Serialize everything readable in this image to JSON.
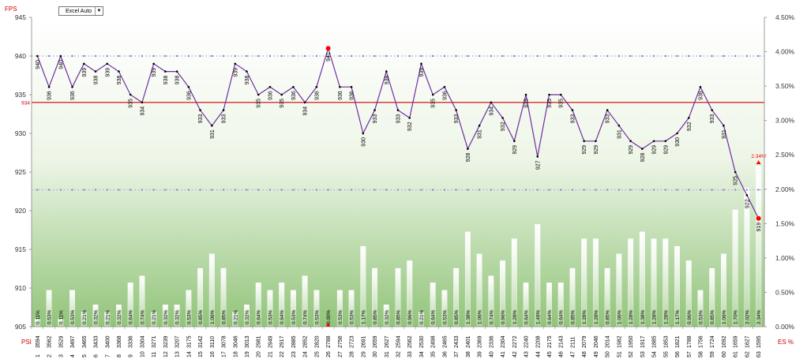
{
  "controls": {
    "dropdown_value": "Excel Auto"
  },
  "chart_data": {
    "type": "combo",
    "left_axis": {
      "title": "FPS",
      "range": [
        905,
        945
      ],
      "ticks": [
        905,
        910,
        915,
        920,
        925,
        930,
        935,
        940,
        945
      ]
    },
    "right_axis": {
      "title": "ES %",
      "range": [
        0,
        4.5
      ],
      "ticks": [
        "0.00%",
        "0.50%",
        "1.00%",
        "1.50%",
        "2.00%",
        "2.50%",
        "3.00%",
        "3.50%",
        "4.00%",
        "4.50%"
      ]
    },
    "x_axis_label": "PSI",
    "categories": [
      "1",
      "2",
      "3",
      "4",
      "5",
      "6",
      "7",
      "8",
      "9",
      "10",
      "11",
      "12",
      "13",
      "14",
      "15",
      "16",
      "17",
      "18",
      "19",
      "20",
      "21",
      "22",
      "23",
      "24",
      "25",
      "26",
      "27",
      "28",
      "29",
      "30",
      "31",
      "32",
      "33",
      "34",
      "35",
      "36",
      "37",
      "38",
      "39",
      "40",
      "41",
      "42",
      "43",
      "44",
      "45",
      "46",
      "47",
      "48",
      "49",
      "50",
      "51",
      "52",
      "53",
      "54",
      "55",
      "56",
      "57",
      "58",
      "59",
      "60",
      "61",
      "62",
      "63"
    ],
    "psi": [
      "3594",
      "3562",
      "3529",
      "3497",
      "3465",
      "3433",
      "3400",
      "3368",
      "3336",
      "3304",
      "3271",
      "3239",
      "3207",
      "3175",
      "3142",
      "3110",
      "3078",
      "3046",
      "3013",
      "2981",
      "2949",
      "2917",
      "2885",
      "2852",
      "2820",
      "2788",
      "2756",
      "2723",
      "2691",
      "2659",
      "2627",
      "2594",
      "2562",
      "2530",
      "2498",
      "2465",
      "2433",
      "2401",
      "2369",
      "2336",
      "2304",
      "2272",
      "2240",
      "2208",
      "2175",
      "2143",
      "2111",
      "2079",
      "2046",
      "2014",
      "1982",
      "1950",
      "1917",
      "1885",
      "1853",
      "1821",
      "1788",
      "1756",
      "1724",
      "1692",
      "1659",
      "1627",
      "1595"
    ],
    "fps": [
      940,
      936,
      940,
      936,
      939,
      938,
      939,
      938,
      935,
      934,
      939,
      938,
      938,
      936,
      933,
      931,
      933,
      939,
      938,
      935,
      936,
      935,
      936,
      934,
      936,
      941,
      936,
      936,
      930,
      933,
      938,
      933,
      932,
      939,
      935,
      936,
      933,
      928,
      931,
      934,
      932,
      929,
      935,
      927,
      935,
      935,
      933,
      929,
      929,
      933,
      931,
      929,
      928,
      929,
      929,
      930,
      932,
      936,
      933,
      931,
      925,
      922,
      919
    ],
    "es_pct_labels": [
      "0.11%",
      "0.53%",
      "0.11%",
      "0.53%",
      "0.21%",
      "0.32%",
      "0.21%",
      "0.32%",
      "0.64%",
      "0.74%",
      "0.21%",
      "0.32%",
      "0.32%",
      "0.53%",
      "0.85%",
      "1.06%",
      "0.85%",
      "0.21%",
      "0.32%",
      "0.64%",
      "0.53%",
      "0.64%",
      "0.53%",
      "0.74%",
      "0.53%",
      "0.00%",
      "0.53%",
      "0.53%",
      "1.17%",
      "0.85%",
      "0.32%",
      "0.85%",
      "0.96%",
      "0.21%",
      "0.64%",
      "0.53%",
      "0.85%",
      "1.38%",
      "1.06%",
      "0.74%",
      "0.96%",
      "1.28%",
      "0.64%",
      "1.49%",
      "0.64%",
      "0.64%",
      "0.85%",
      "1.28%",
      "1.28%",
      "0.85%",
      "1.06%",
      "1.28%",
      "1.38%",
      "1.28%",
      "1.28%",
      "1.17%",
      "0.96%",
      "0.53%",
      "0.85%",
      "1.06%",
      "1.70%",
      "2.02%",
      "2.34%"
    ],
    "es_pct": [
      0.11,
      0.53,
      0.11,
      0.53,
      0.21,
      0.32,
      0.21,
      0.32,
      0.64,
      0.74,
      0.21,
      0.32,
      0.32,
      0.53,
      0.85,
      1.06,
      0.85,
      0.21,
      0.32,
      0.64,
      0.53,
      0.64,
      0.53,
      0.74,
      0.53,
      0.0,
      0.53,
      0.53,
      1.17,
      0.85,
      0.32,
      0.85,
      0.96,
      0.21,
      0.64,
      0.53,
      0.85,
      1.38,
      1.06,
      0.74,
      0.96,
      1.28,
      0.64,
      1.49,
      0.64,
      0.64,
      0.85,
      1.28,
      1.28,
      0.85,
      1.06,
      1.28,
      1.38,
      1.28,
      1.28,
      1.17,
      0.96,
      0.53,
      0.85,
      1.06,
      1.7,
      2.02,
      2.34
    ],
    "average_line": {
      "value": 934,
      "label": "934",
      "color": "#cc0000"
    },
    "upper_dotted_line": 940,
    "lower_dotted_line": 922.7,
    "highlight": {
      "max_fps_index": 25,
      "min_fps_index": 62,
      "max_es_index": 62,
      "max_es_label": "2.34%",
      "min_es_index": 25
    },
    "colors": {
      "line": "#7030a0",
      "marker": "#000000",
      "highlight": "#ff0000",
      "dotted": "#b0a0e0",
      "bg_top": "#ffffff",
      "bg_bottom": "#92c47a"
    }
  }
}
